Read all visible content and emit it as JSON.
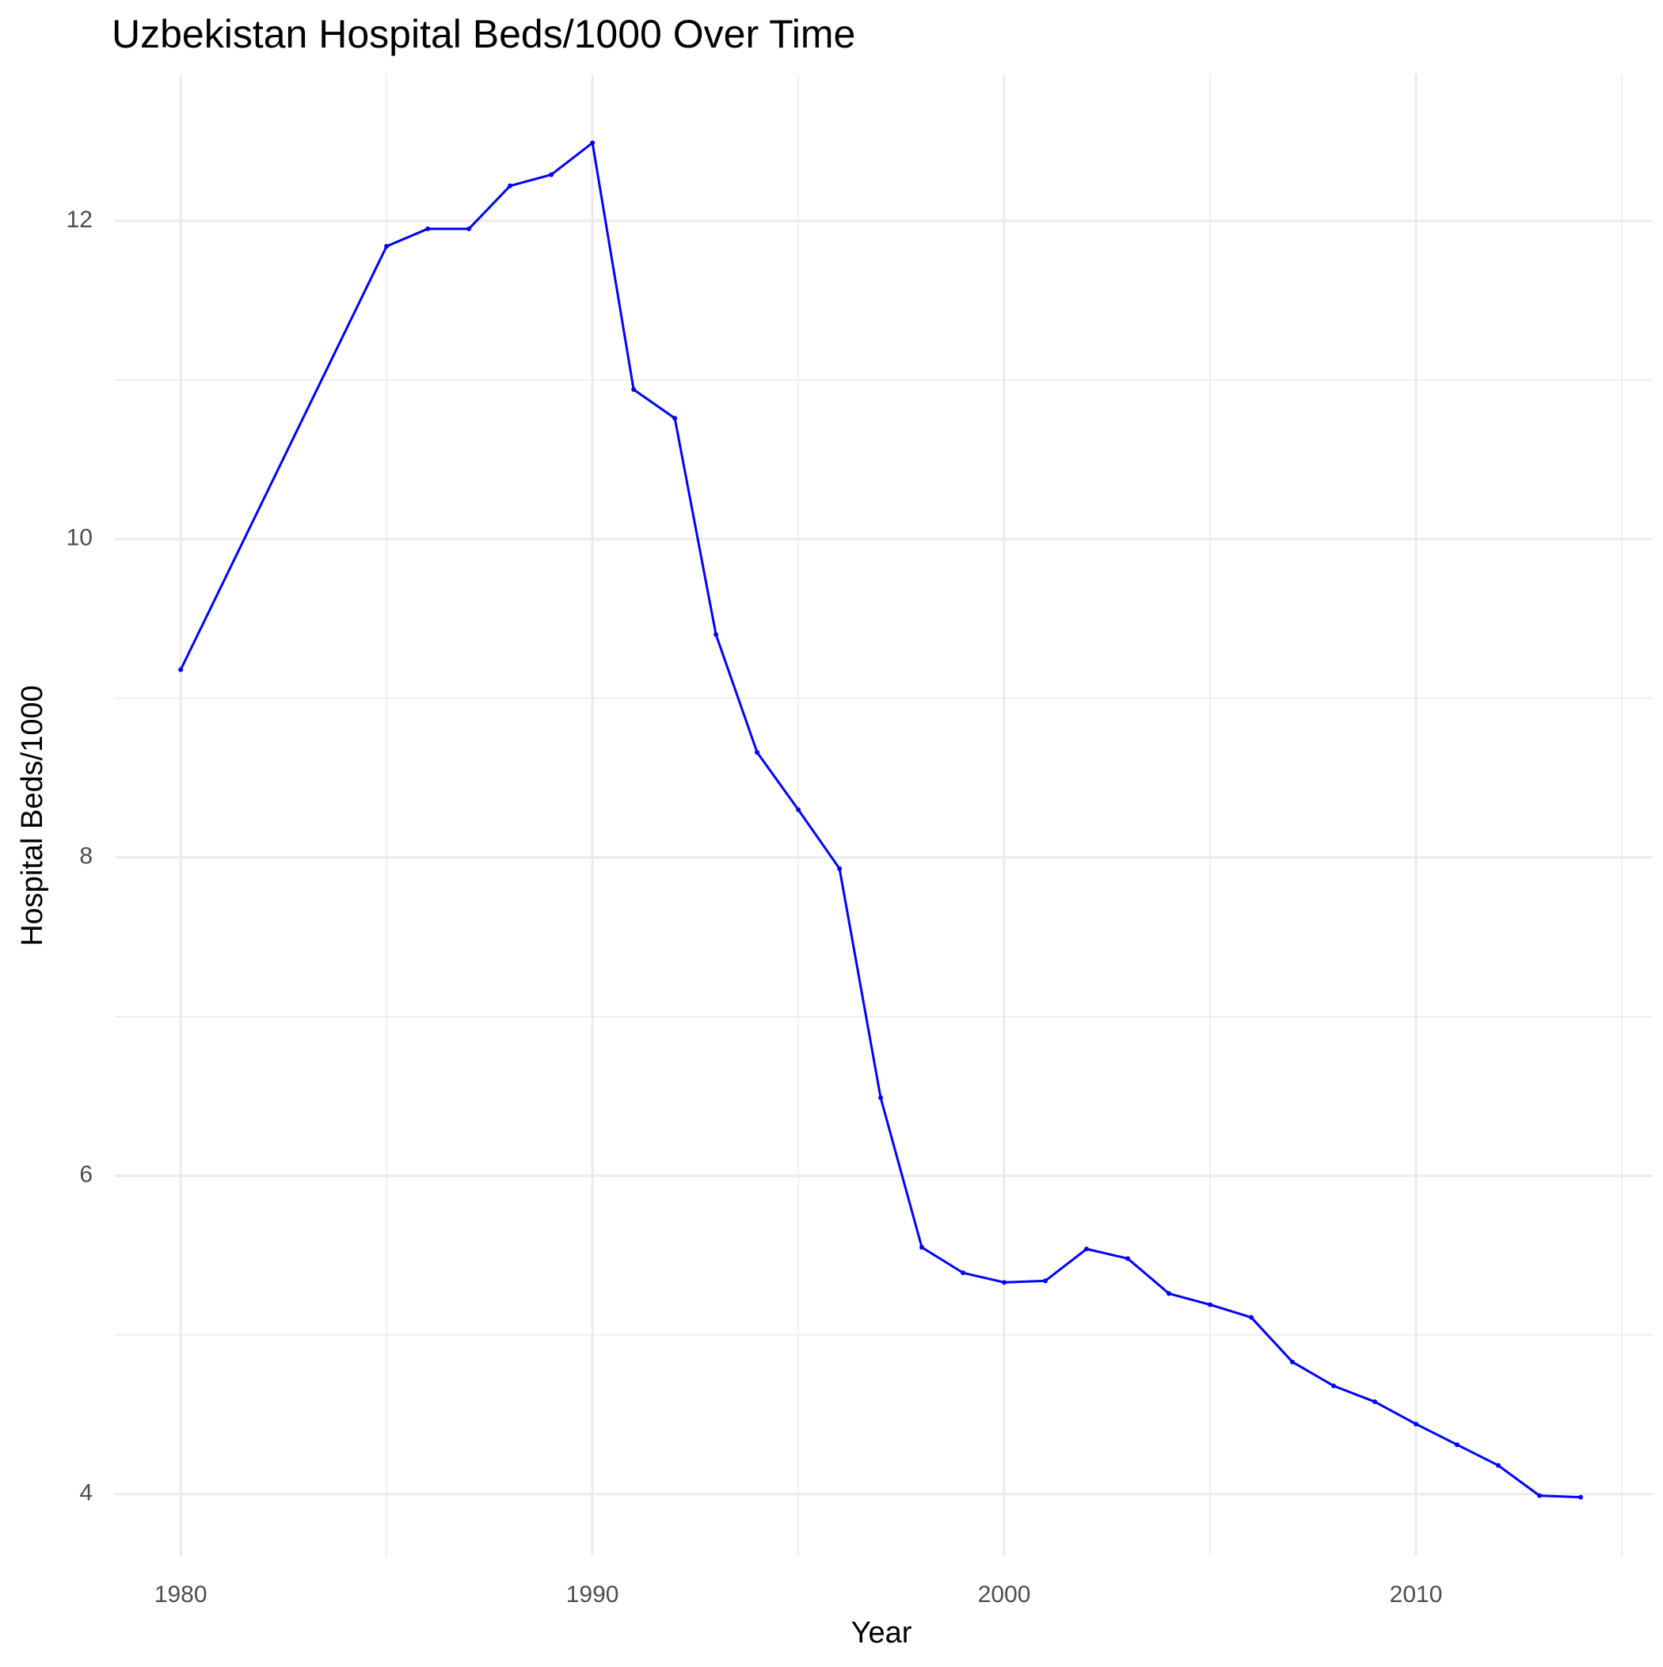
{
  "chart_data": {
    "type": "line",
    "title": "Uzbekistan Hospital Beds/1000 Over Time",
    "x_label": "Year",
    "y_label": "Hospital Beds/1000",
    "x": [
      1980,
      1985,
      1986,
      1987,
      1988,
      1989,
      1990,
      1991,
      1992,
      1993,
      1994,
      1995,
      1996,
      1997,
      1998,
      1999,
      2000,
      2001,
      2002,
      2003,
      2004,
      2005,
      2006,
      2007,
      2008,
      2009,
      2010,
      2011,
      2012,
      2013,
      2014
    ],
    "series": [
      {
        "name": "Hospital Beds/1000",
        "color": "#0000ff",
        "values": [
          9.18,
          11.84,
          11.95,
          11.95,
          12.22,
          12.29,
          12.49,
          10.94,
          10.76,
          9.4,
          8.66,
          8.3,
          7.93,
          6.49,
          5.55,
          5.39,
          5.33,
          5.34,
          5.54,
          5.48,
          5.26,
          5.19,
          5.11,
          4.83,
          4.68,
          4.58,
          4.44,
          4.31,
          4.18,
          3.99,
          3.98
        ]
      }
    ],
    "xlim": [
      1978.4,
      2015.75
    ],
    "ylim": [
      3.61,
      12.92
    ],
    "xticks": [
      1980,
      1990,
      2000,
      2010
    ],
    "yticks": [
      4,
      6,
      8,
      10,
      12
    ],
    "minor_xticks": [
      1985,
      1995,
      2005,
      2015
    ],
    "minor_yticks": [
      5,
      7,
      9,
      11
    ],
    "grid": true,
    "markers": true
  }
}
